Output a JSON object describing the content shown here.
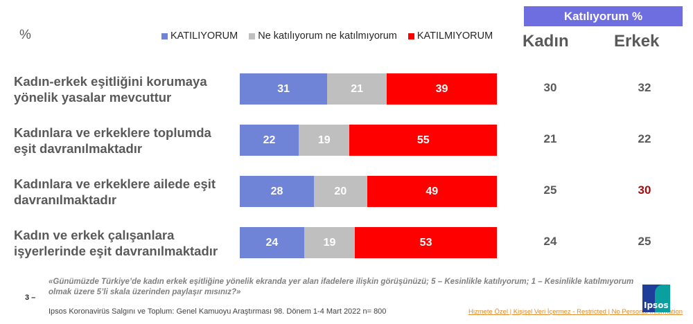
{
  "percent_label": "%",
  "legend": [
    {
      "label": "KATILIYORUM",
      "color": "#6f84d6"
    },
    {
      "label": "Ne katılıyorum ne katılmıyorum",
      "color": "#bfbfbf"
    },
    {
      "label": "KATILMIYORUM",
      "color": "#ff0000"
    }
  ],
  "side_table": {
    "header": "Katılıyorum %",
    "columns": [
      "Kadın",
      "Erkek"
    ]
  },
  "chart_data": {
    "type": "bar",
    "orientation": "horizontal-stacked",
    "categories": [
      "Kadın-erkek eşitliğini korumaya yönelik yasalar mevcuttur",
      "Kadınlara ve erkeklere toplumda eşit davranılmaktadır",
      "Kadınlara ve erkeklere ailede eşit davranılmaktadır",
      "Kadın ve erkek çalışanlara işyerlerinde eşit davranılmaktadır"
    ],
    "category_lines": [
      [
        "Kadın-erkek eşitliğini korumaya",
        "yönelik yasalar mevcuttur"
      ],
      [
        "Kadınlara ve erkeklere toplumda",
        "eşit davranılmaktadır"
      ],
      [
        "Kadınlara ve erkeklere ailede eşit",
        "davranılmaktadır"
      ],
      [
        "Kadın ve erkek çalışanlara",
        "işyerlerinde eşit davranılmaktadır"
      ]
    ],
    "series": [
      {
        "name": "KATILIYORUM",
        "color": "#6f84d6",
        "values": [
          31,
          22,
          28,
          24
        ]
      },
      {
        "name": "Ne katılıyorum ne katılmıyorum",
        "color": "#bfbfbf",
        "values": [
          21,
          19,
          20,
          19
        ]
      },
      {
        "name": "KATILMIYORUM",
        "color": "#ff0000",
        "values": [
          39,
          55,
          49,
          53
        ]
      }
    ],
    "agree_by_gender": {
      "Kadın": [
        30,
        21,
        25,
        24
      ],
      "Erkek": [
        32,
        22,
        30,
        25
      ]
    },
    "highlight": {
      "column": "Erkek",
      "row": 2,
      "color": "#a50d0d"
    },
    "unit": "%",
    "legend_position": "top"
  },
  "footer": {
    "question": "«Günümüzde Türkiye’de kadın erkek eşitliğine yönelik ekranda yer alan ifadelere ilişkin görüşünüzü; 5 – Kesinlikle katılıyorum; 1 – Kesinlikle katılmıyorum olmak üzere 5’li skala üzerinden paylaşır mısınız?»",
    "page_number": "3 –",
    "source": "Ipsos Koronavirüs  Salgını ve Toplum:  Genel Kamuoyu Araştırması 98. Dönem  1-4 Mart 2022 n= 800",
    "classification": "Hizmete Özel | Kişisel Veri İçermez - Restricted | No Personal Information",
    "logo_text": "Ipsos"
  }
}
